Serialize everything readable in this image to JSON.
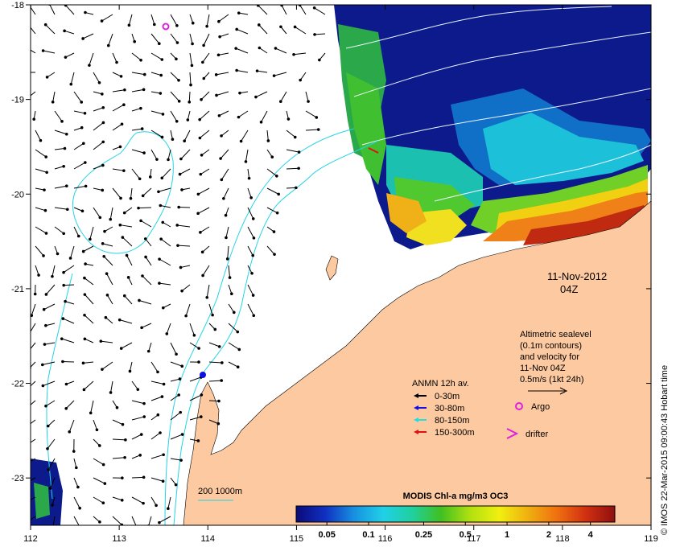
{
  "map": {
    "date": "11-Nov-2012",
    "hour": "04Z",
    "x_ticks": [
      "112",
      "113",
      "114",
      "115",
      "116",
      "117",
      "118",
      "119"
    ],
    "y_ticks": [
      "-18",
      "-19",
      "-20",
      "-21",
      "-22",
      "-23"
    ],
    "extent": {
      "lon": [
        112,
        119
      ],
      "lat": [
        -23.5,
        -18
      ]
    },
    "colors": {
      "land": "#fcc9a0",
      "contour": "#22d4e6",
      "sea_level_contour": "#e8f4ff",
      "vector": "#000000"
    }
  },
  "altimetry_note": {
    "line1": "Altimetric sealevel",
    "line2": "(0.1m contours)",
    "line3": "and velocity for",
    "line4": "11-Nov 04Z",
    "line5": "0.5m/s (1kt 24h)"
  },
  "moorings": {
    "title": "ANMN 12h av.",
    "items": [
      {
        "label": "0-30m",
        "color": "#000000"
      },
      {
        "label": "30-80m",
        "color": "#1010e0"
      },
      {
        "label": "80-150m",
        "color": "#20e0e0"
      },
      {
        "label": "150-300m",
        "color": "#e01010"
      }
    ]
  },
  "symbols": {
    "argo_label": "Argo",
    "argo_color": "#e020e0",
    "drifter_label": "drifter",
    "drifter_color": "#e020e0"
  },
  "depth_legend": {
    "label": "200  1000m",
    "color": "#22d4e6"
  },
  "colorbar": {
    "title": "MODIS Chl-a mg/m3 OC3",
    "ticks": [
      "0.05",
      "0.1",
      "0.25",
      "0.5",
      "1",
      "2",
      "4"
    ],
    "stops": [
      "#0a0a7a",
      "#1030c0",
      "#1890e0",
      "#20d0e8",
      "#20d0a0",
      "#40c020",
      "#b0e010",
      "#f0f010",
      "#f0b010",
      "#f07010",
      "#d03010",
      "#901010"
    ]
  },
  "credit": "© IMOS 22-Mar-2015 09:00:43 Hobart time"
}
